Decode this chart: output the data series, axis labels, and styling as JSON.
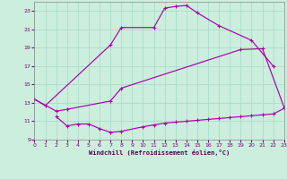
{
  "bg_color": "#cceedd",
  "grid_color": "#aaddcc",
  "line_color": "#aa00aa",
  "xlim": [
    0,
    23
  ],
  "ylim": [
    9,
    24
  ],
  "xticks": [
    0,
    1,
    2,
    3,
    4,
    5,
    6,
    7,
    8,
    9,
    10,
    11,
    12,
    13,
    14,
    15,
    16,
    17,
    18,
    19,
    20,
    21,
    22,
    23
  ],
  "yticks": [
    9,
    11,
    13,
    15,
    17,
    19,
    21,
    23
  ],
  "xlabel": "Windchill (Refroidissement éolien,°C)",
  "line1_x": [
    0,
    1,
    2,
    3,
    4,
    5,
    6,
    7,
    8,
    9,
    10,
    11,
    12,
    13,
    14,
    15,
    16,
    17,
    18,
    19,
    20,
    21,
    22,
    23
  ],
  "line1_y": [
    13.4,
    12.7,
    null,
    null,
    null,
    null,
    null,
    null,
    null,
    null,
    null,
    21.2,
    23.3,
    23.5,
    23.6,
    22.8,
    null,
    21.4,
    null,
    null,
    null,
    null,
    null,
    null
  ],
  "line2_x": [
    0,
    1,
    2,
    3,
    4,
    5,
    6,
    7,
    8,
    9,
    10,
    11,
    12,
    13,
    14,
    15,
    16,
    17,
    18,
    19,
    20,
    21,
    22,
    23
  ],
  "line2_y": [
    13.4,
    null,
    12.1,
    12.3,
    null,
    null,
    null,
    13.2,
    14.6,
    null,
    null,
    null,
    null,
    null,
    null,
    null,
    null,
    null,
    null,
    18.8,
    null,
    18.9,
    null,
    null
  ],
  "line3_x": [
    0,
    1,
    2,
    3,
    4,
    5,
    6,
    7,
    8,
    9,
    10,
    11,
    12,
    13,
    14,
    15,
    16,
    17,
    18,
    19,
    20,
    21,
    22,
    23
  ],
  "line3_y": [
    null,
    null,
    11.5,
    10.5,
    10.7,
    10.7,
    10.2,
    9.8,
    9.9,
    null,
    null,
    null,
    null,
    null,
    null,
    null,
    null,
    null,
    null,
    null,
    null,
    null,
    null,
    null
  ],
  "curve1_x": [
    0,
    1,
    7,
    8,
    11,
    12,
    13,
    14,
    15,
    17,
    20,
    22
  ],
  "curve1_y": [
    13.4,
    12.7,
    19.3,
    21.2,
    21.2,
    23.3,
    23.5,
    23.6,
    22.8,
    21.4,
    19.8,
    17.0
  ],
  "curve2_x": [
    0,
    2,
    3,
    7,
    8,
    19,
    21,
    23
  ],
  "curve2_y": [
    13.4,
    12.1,
    12.3,
    13.2,
    14.6,
    18.8,
    18.9,
    12.5
  ],
  "curve3_x": [
    2,
    3,
    4,
    5,
    6,
    7,
    8,
    10,
    11,
    12,
    13,
    14,
    15,
    16,
    17,
    18,
    19,
    20,
    21,
    22,
    23
  ],
  "curve3_y": [
    11.5,
    10.5,
    10.7,
    10.7,
    10.2,
    9.8,
    9.9,
    10.4,
    10.6,
    10.8,
    10.9,
    11.0,
    11.1,
    11.2,
    11.3,
    11.4,
    11.5,
    11.6,
    11.7,
    11.8,
    12.4
  ]
}
